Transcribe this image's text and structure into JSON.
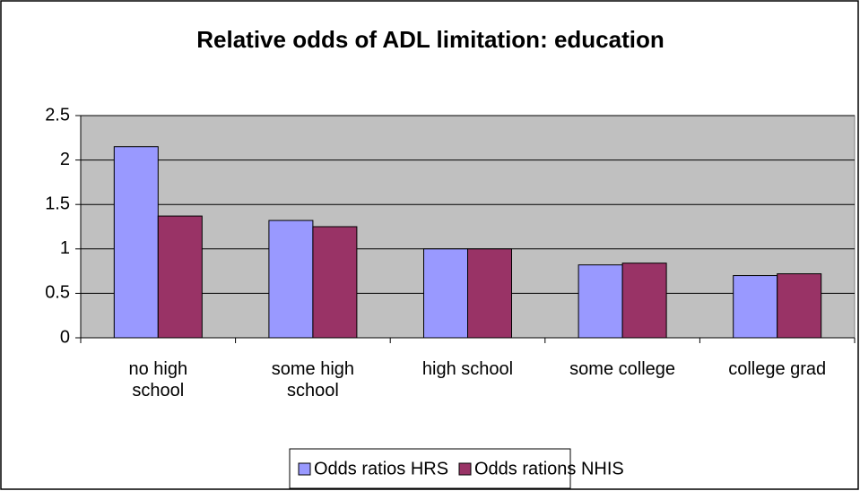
{
  "chart_data": {
    "type": "bar",
    "title": "Relative odds of ADL limitation: education",
    "categories": [
      "no high school",
      "some high school",
      "high school",
      "some college",
      "college grad"
    ],
    "series": [
      {
        "name": "Odds ratios HRS",
        "color": "#9999ff",
        "values": [
          2.15,
          1.32,
          1.0,
          0.82,
          0.7
        ]
      },
      {
        "name": "Odds rations NHIS",
        "color": "#993366",
        "values": [
          1.37,
          1.25,
          1.0,
          0.84,
          0.72
        ]
      }
    ],
    "ylim": [
      0,
      2.5
    ],
    "yticks": [
      0,
      0.5,
      1,
      1.5,
      2,
      2.5
    ],
    "grid": true,
    "legend": "bottom"
  }
}
